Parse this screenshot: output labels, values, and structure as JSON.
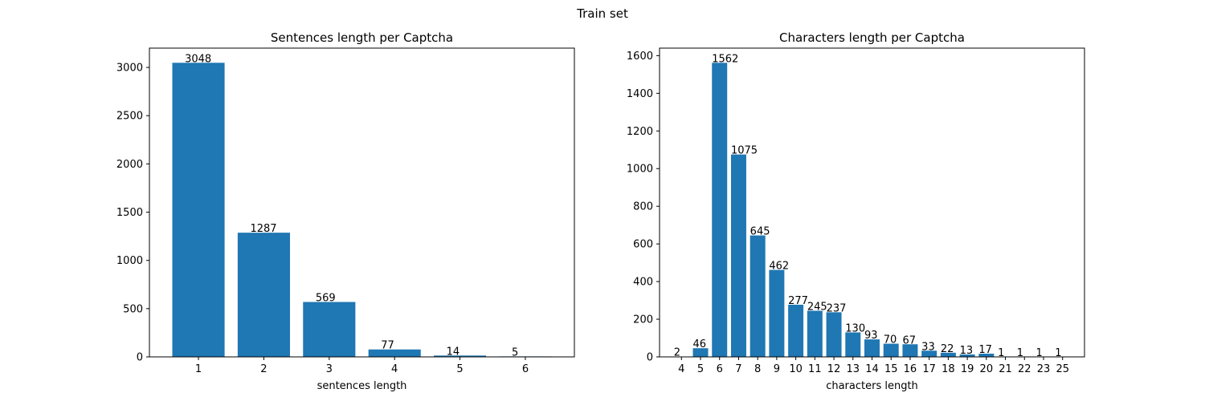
{
  "figure": {
    "suptitle": "Train set",
    "bar_color": "#1f77b4"
  },
  "chart_data": [
    {
      "type": "bar",
      "title": "Sentences length per Captcha",
      "xlabel": "sentences length",
      "ylabel": "",
      "categories": [
        "1",
        "2",
        "3",
        "4",
        "5",
        "6"
      ],
      "values": [
        3048,
        1287,
        569,
        77,
        14,
        5
      ],
      "ylim": [
        0,
        3200
      ],
      "yticks": [
        0,
        500,
        1000,
        1500,
        2000,
        2500,
        3000
      ],
      "data_labels": true,
      "grid": false,
      "legend": "none"
    },
    {
      "type": "bar",
      "title": "Characters length per Captcha",
      "xlabel": "characters length",
      "ylabel": "",
      "categories": [
        "4",
        "5",
        "6",
        "7",
        "8",
        "9",
        "10",
        "11",
        "12",
        "13",
        "14",
        "15",
        "16",
        "17",
        "18",
        "19",
        "20",
        "21",
        "22",
        "23",
        "25"
      ],
      "values": [
        2,
        46,
        1562,
        1075,
        645,
        462,
        277,
        245,
        237,
        130,
        93,
        70,
        67,
        33,
        22,
        13,
        17,
        1,
        1,
        1,
        1
      ],
      "ylim": [
        0,
        1640
      ],
      "yticks": [
        0,
        200,
        400,
        600,
        800,
        1000,
        1200,
        1400,
        1600
      ],
      "data_labels": true,
      "grid": false,
      "legend": "none"
    }
  ]
}
